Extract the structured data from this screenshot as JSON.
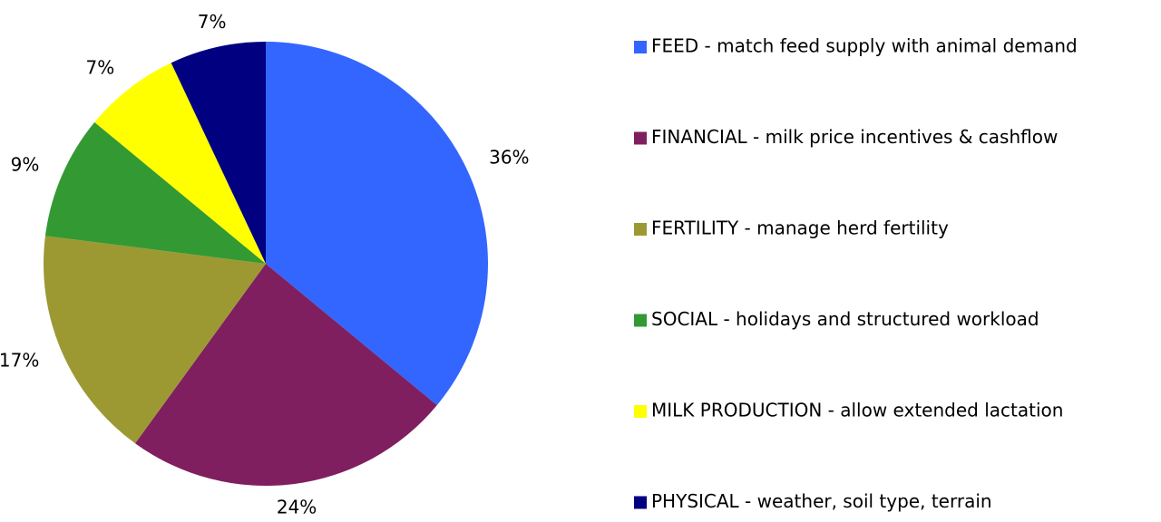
{
  "chart_data": {
    "type": "pie",
    "categories": [
      "FEED - match feed supply with animal demand",
      "FINANCIAL - milk price incentives & cashflow",
      "FERTILITY - manage herd fertility",
      "SOCIAL - holidays and structured workload",
      "MILK PRODUCTION - allow extended lactation",
      "PHYSICAL - weather, soil type, terrain"
    ],
    "values": [
      36,
      24,
      17,
      9,
      7,
      7
    ],
    "value_labels": [
      "36%",
      "24%",
      "17%",
      "9%",
      "7%",
      "7%"
    ],
    "colors": [
      "#3366ff",
      "#7f1f5f",
      "#9c9933",
      "#339933",
      "#ffff00",
      "#000080"
    ],
    "legend": "right"
  }
}
